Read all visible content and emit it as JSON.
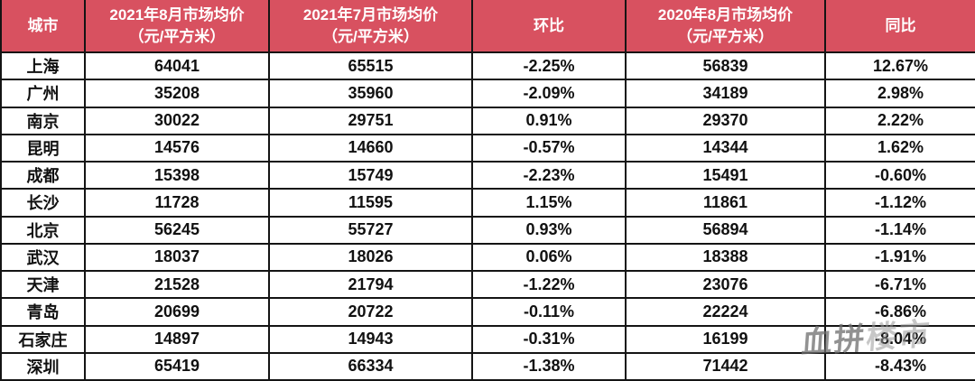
{
  "chart_data": {
    "type": "table",
    "title": "城市市场均价环比同比表",
    "columns": [
      {
        "title": "城市",
        "subtitle": ""
      },
      {
        "title": "2021年8月市场均价",
        "subtitle": "（元/平方米）"
      },
      {
        "title": "2021年7月市场均价",
        "subtitle": "（元/平方米）"
      },
      {
        "title": "环比",
        "subtitle": ""
      },
      {
        "title": "2020年8月市场均价",
        "subtitle": "（元/平方米）"
      },
      {
        "title": "同比",
        "subtitle": ""
      }
    ],
    "rows": [
      [
        "上海",
        "64041",
        "65515",
        "-2.25%",
        "56839",
        "12.67%"
      ],
      [
        "广州",
        "35208",
        "35960",
        "-2.09%",
        "34189",
        "2.98%"
      ],
      [
        "南京",
        "30022",
        "29751",
        "0.91%",
        "29370",
        "2.22%"
      ],
      [
        "昆明",
        "14576",
        "14660",
        "-0.57%",
        "14344",
        "1.62%"
      ],
      [
        "成都",
        "15398",
        "15749",
        "-2.23%",
        "15491",
        "-0.60%"
      ],
      [
        "长沙",
        "11728",
        "11595",
        "1.15%",
        "11861",
        "-1.12%"
      ],
      [
        "北京",
        "56245",
        "55727",
        "0.93%",
        "56894",
        "-1.14%"
      ],
      [
        "武汉",
        "18037",
        "18026",
        "0.06%",
        "18388",
        "-1.91%"
      ],
      [
        "天津",
        "21528",
        "21794",
        "-1.22%",
        "23076",
        "-6.71%"
      ],
      [
        "青岛",
        "20699",
        "20722",
        "-0.11%",
        "22224",
        "-6.86%"
      ],
      [
        "石家庄",
        "14897",
        "14943",
        "-0.31%",
        "16199",
        "-8.04%"
      ],
      [
        "深圳",
        "65419",
        "66334",
        "-1.38%",
        "71442",
        "-8.43%"
      ]
    ]
  },
  "watermark": {
    "part1": "血拼",
    "part2": "楼市"
  },
  "colors": {
    "header_bg": "#d85160",
    "header_text": "#ffffff",
    "border": "#141414",
    "body_text": "#111111",
    "watermark_dark": "#6e6e6e",
    "watermark_light": "#9a9a9a"
  }
}
